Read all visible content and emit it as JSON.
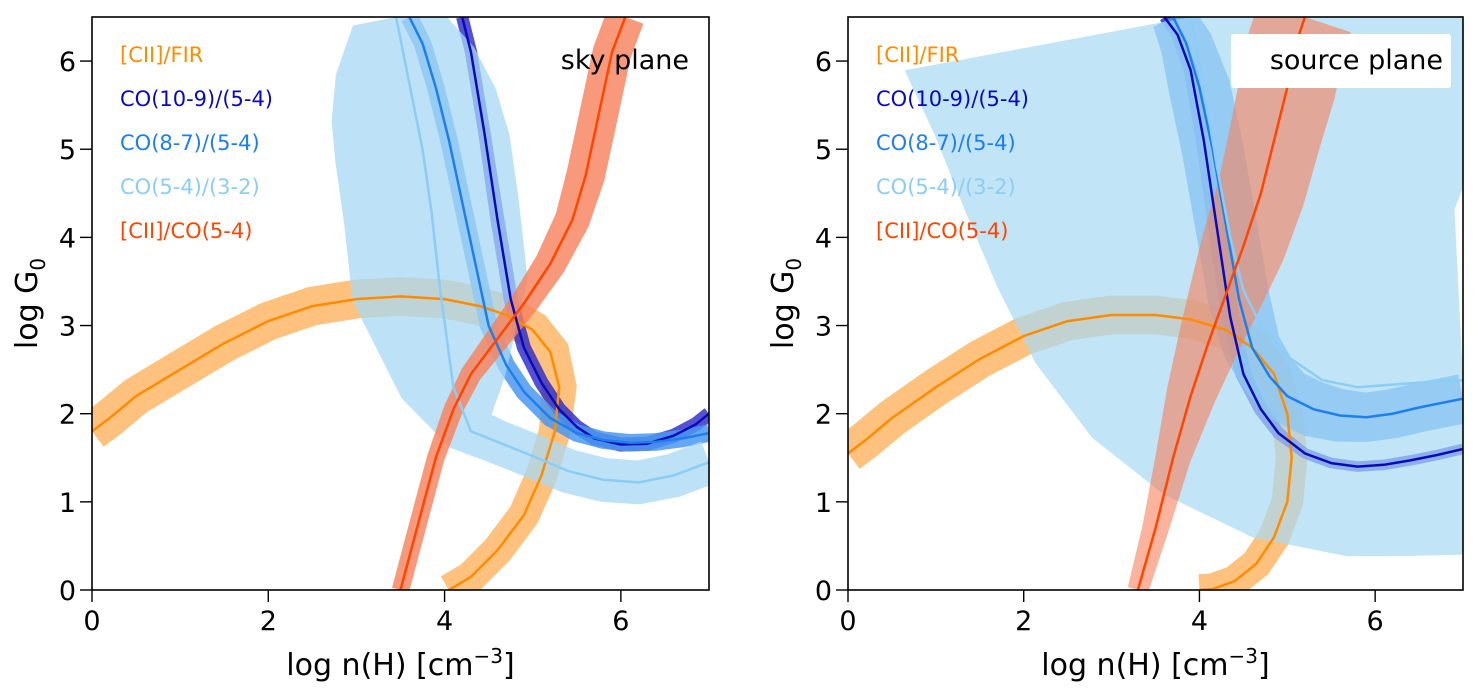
{
  "chart_data": [
    {
      "type": "line",
      "title": "sky plane",
      "title_box": false,
      "xlabel": "log n(H) [cm",
      "xlabel_sup": "−3",
      "xlabel_close": "]",
      "ylabel": "log G",
      "ylabel_sub": "0",
      "xlim": [
        0,
        7
      ],
      "ylim": [
        0,
        6.5
      ],
      "xticks": [
        "0",
        "2",
        "4",
        "6"
      ],
      "yticks": [
        "0",
        "1",
        "2",
        "3",
        "4",
        "5",
        "6"
      ],
      "grid": false,
      "legend_placement": "top-left",
      "series": [
        {
          "name": "[CII]/FIR",
          "color": "#ff8c00",
          "band_color": "#ffb15e",
          "band_opacity": 0.8,
          "x": [
            0,
            0.2,
            0.5,
            1,
            1.5,
            2,
            2.5,
            3,
            3.5,
            4,
            4.4,
            4.7,
            5.0,
            5.2,
            5.3,
            5.25,
            5.1,
            4.9,
            4.6,
            4.3,
            4.05
          ],
          "y": [
            1.8,
            1.95,
            2.2,
            2.5,
            2.8,
            3.05,
            3.22,
            3.3,
            3.33,
            3.3,
            3.22,
            3.12,
            2.95,
            2.7,
            2.3,
            1.8,
            1.3,
            0.85,
            0.45,
            0.15,
            0
          ],
          "band": [
            0.22,
            0.22,
            0.22,
            0.22,
            0.22,
            0.22,
            0.22,
            0.22,
            0.22,
            0.22,
            0.22,
            0.22,
            0.22,
            0.22,
            0.2,
            0.18,
            0.18,
            0.18,
            0.18,
            0.18,
            0.18
          ]
        },
        {
          "name": "CO(10-9)/(5-4)",
          "color": "#0a0ab8",
          "band_color": "#2727c8",
          "band_opacity": 0.8,
          "x": [
            4.2,
            4.3,
            4.45,
            4.6,
            4.75,
            4.9,
            5.1,
            5.3,
            5.5,
            5.7,
            6.0,
            6.3,
            6.6,
            6.85,
            7.0
          ],
          "y": [
            6.5,
            6.1,
            5.2,
            4.2,
            3.3,
            2.75,
            2.35,
            2.05,
            1.85,
            1.72,
            1.65,
            1.66,
            1.75,
            1.88,
            2.0
          ],
          "band": [
            0.07,
            0.07,
            0.07,
            0.08,
            0.08,
            0.08,
            0.08,
            0.08,
            0.08,
            0.08,
            0.08,
            0.08,
            0.08,
            0.08,
            0.08
          ]
        },
        {
          "name": "CO(8-7)/(5-4)",
          "color": "#1e7fea",
          "band_color": "#4a98f0",
          "band_opacity": 0.85,
          "x": [
            3.6,
            3.75,
            3.9,
            4.05,
            4.2,
            4.35,
            4.5,
            4.7,
            4.9,
            5.2,
            5.5,
            5.8,
            6.1,
            6.4,
            6.7,
            7.0
          ],
          "y": [
            6.5,
            6.2,
            5.7,
            5.1,
            4.4,
            3.7,
            3.0,
            2.55,
            2.25,
            1.95,
            1.78,
            1.7,
            1.67,
            1.68,
            1.72,
            1.78
          ],
          "band": [
            0.1,
            0.1,
            0.1,
            0.1,
            0.1,
            0.1,
            0.1,
            0.1,
            0.1,
            0.1,
            0.1,
            0.1,
            0.1,
            0.1,
            0.1,
            0.1
          ]
        },
        {
          "name": "CO(5-4)/(3-2)",
          "color": "#8ccdf5",
          "band_color": "#a7d8f4",
          "band_opacity": 0.75,
          "x": [
            3.45,
            3.55,
            3.65,
            3.75,
            3.85,
            3.95,
            4.1,
            4.3,
            4.6,
            5.0,
            5.4,
            5.8,
            6.2,
            6.6,
            7.0
          ],
          "y": [
            6.5,
            6.0,
            5.5,
            5.0,
            4.3,
            3.4,
            2.3,
            1.8,
            1.68,
            1.52,
            1.35,
            1.25,
            1.22,
            1.3,
            1.45
          ],
          "band": [
            0.5,
            0.8,
            0.95,
            1.0,
            1.0,
            1.0,
            0.6,
            0.3,
            0.25,
            0.25,
            0.25,
            0.25,
            0.25,
            0.25,
            0.25
          ]
        },
        {
          "name": "[CII]/CO(5-4)",
          "color": "#ff4500",
          "band_color": "#f7805a",
          "band_opacity": 0.8,
          "x": [
            3.5,
            3.7,
            3.9,
            4.1,
            4.3,
            4.6,
            4.9,
            5.2,
            5.45,
            5.6,
            5.75,
            5.9,
            6.05
          ],
          "y": [
            0,
            0.75,
            1.5,
            2.05,
            2.45,
            2.85,
            3.25,
            3.7,
            4.2,
            4.7,
            5.4,
            6.1,
            6.5
          ],
          "band": [
            0.1,
            0.1,
            0.1,
            0.11,
            0.12,
            0.14,
            0.16,
            0.18,
            0.2,
            0.22,
            0.22,
            0.22,
            0.22
          ]
        }
      ]
    },
    {
      "type": "line",
      "title": "source plane",
      "title_box": true,
      "xlabel": "log n(H) [cm",
      "xlabel_sup": "−3",
      "xlabel_close": "]",
      "ylabel": "log G",
      "ylabel_sub": "0",
      "xlim": [
        0,
        7
      ],
      "ylim": [
        0,
        6.5
      ],
      "xticks": [
        "0",
        "2",
        "4",
        "6"
      ],
      "yticks": [
        "0",
        "1",
        "2",
        "3",
        "4",
        "5",
        "6"
      ],
      "grid": false,
      "legend_placement": "top-left",
      "series": [
        {
          "name": "[CII]/FIR",
          "color": "#ff8c00",
          "band_color": "#ffb15e",
          "band_opacity": 0.8,
          "x": [
            0,
            0.2,
            0.5,
            1,
            1.5,
            2,
            2.5,
            3,
            3.5,
            3.9,
            4.3,
            4.6,
            4.85,
            5.0,
            5.05,
            5.0,
            4.85,
            4.65,
            4.4,
            4.15,
            4.0
          ],
          "y": [
            1.55,
            1.7,
            1.95,
            2.3,
            2.62,
            2.88,
            3.05,
            3.12,
            3.12,
            3.07,
            2.95,
            2.75,
            2.45,
            2.0,
            1.5,
            1.0,
            0.6,
            0.3,
            0.1,
            0.01,
            0
          ],
          "band": [
            0.22,
            0.22,
            0.22,
            0.22,
            0.22,
            0.22,
            0.22,
            0.22,
            0.22,
            0.22,
            0.22,
            0.22,
            0.2,
            0.18,
            0.18,
            0.18,
            0.18,
            0.18,
            0.18,
            0.18,
            0.18
          ]
        },
        {
          "name": "CO(10-9)/(5-4)",
          "color": "#0a0ab8",
          "band_color": "#2727c8",
          "band_opacity": 0.8,
          "x": [
            3.6,
            3.75,
            3.9,
            4.05,
            4.2,
            4.35,
            4.5,
            4.7,
            4.9,
            5.2,
            5.5,
            5.8,
            6.1,
            6.4,
            6.7,
            7.0
          ],
          "y": [
            6.5,
            6.3,
            5.9,
            5.1,
            4.1,
            3.1,
            2.45,
            2.05,
            1.78,
            1.55,
            1.44,
            1.4,
            1.42,
            1.47,
            1.53,
            1.6
          ],
          "band": [
            0.06,
            0.07,
            0.08,
            0.09,
            0.1,
            0.1,
            0.09,
            0.08,
            0.07,
            0.06,
            0.06,
            0.06,
            0.06,
            0.06,
            0.06,
            0.06
          ]
        },
        {
          "name": "CO(8-7)/(5-4)",
          "color": "#1e7fea",
          "band_color": "#4a98f0",
          "band_opacity": 0.8,
          "x": [
            3.7,
            3.85,
            4.0,
            4.15,
            4.3,
            4.45,
            4.6,
            4.8,
            5.0,
            5.3,
            5.6,
            5.9,
            6.2,
            6.5,
            6.8,
            7.0
          ],
          "y": [
            6.5,
            6.2,
            5.7,
            5.0,
            4.15,
            3.3,
            2.75,
            2.42,
            2.2,
            2.05,
            1.98,
            1.96,
            2.0,
            2.07,
            2.13,
            2.17
          ],
          "band": [
            0.25,
            0.3,
            0.35,
            0.35,
            0.35,
            0.35,
            0.33,
            0.32,
            0.32,
            0.32,
            0.3,
            0.28,
            0.28,
            0.28,
            0.28,
            0.28
          ]
        },
        {
          "name": "CO(5-4)/(3-2)",
          "color": "#8ccdf5",
          "band_color": "#a7d8f4",
          "band_opacity": 0.7,
          "x": [
            3.9,
            4.05,
            4.2,
            4.35,
            4.5,
            4.7,
            5.0,
            5.4,
            5.8,
            6.2,
            6.6,
            7.0
          ],
          "y": [
            6.5,
            5.7,
            4.8,
            4.0,
            3.4,
            3.0,
            2.65,
            2.38,
            2.3,
            2.33,
            2.36,
            2.38
          ],
          "band": [
            3.3,
            3.1,
            2.9,
            2.7,
            2.5,
            2.3,
            2.1,
            1.95,
            1.92,
            1.95,
            1.97,
            1.98
          ]
        },
        {
          "name": "[CII]/CO(5-4)",
          "color": "#ff4500",
          "band_color": "#f7805a",
          "band_opacity": 0.6,
          "x": [
            3.3,
            3.5,
            3.7,
            3.9,
            4.1,
            4.3,
            4.5,
            4.7,
            4.85,
            5.0,
            5.1,
            5.2
          ],
          "y": [
            0,
            0.7,
            1.5,
            2.2,
            2.8,
            3.35,
            3.9,
            4.5,
            5.1,
            5.7,
            6.2,
            6.5
          ],
          "band": [
            0.12,
            0.15,
            0.2,
            0.28,
            0.35,
            0.42,
            0.48,
            0.5,
            0.52,
            0.55,
            0.55,
            0.55
          ]
        }
      ]
    }
  ]
}
